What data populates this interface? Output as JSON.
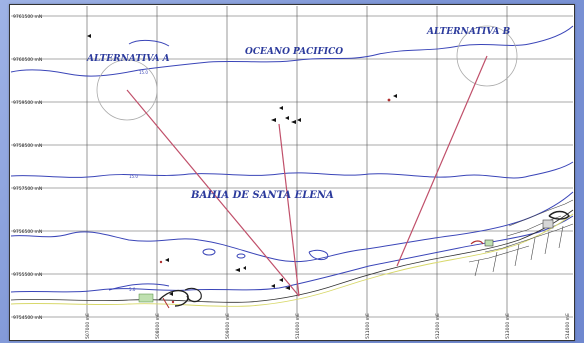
{
  "map": {
    "labels": {
      "alt_a": "ALTERNATIVA A",
      "alt_b": "ALTERNATIVA B",
      "ocean": "OCEANO PACIFICO",
      "bay": "BAHIA DE SANTA ELENA"
    },
    "y_ticks": [
      "9761500 mN",
      "9760500 mN",
      "9759500 mN",
      "9758500 mN",
      "9757500 mN",
      "9756500 mN",
      "9755500 mN",
      "9754500 mN"
    ],
    "x_ticks": [
      "507000 mE",
      "508000 mE",
      "509000 mE",
      "510000 mE",
      "511000 mE",
      "512000 mE",
      "513000 mE",
      "514000 mE"
    ],
    "colors": {
      "contour": "#3a45b8",
      "route": "#c0506a",
      "grid": "#555555",
      "land_feature": "#222222"
    }
  }
}
